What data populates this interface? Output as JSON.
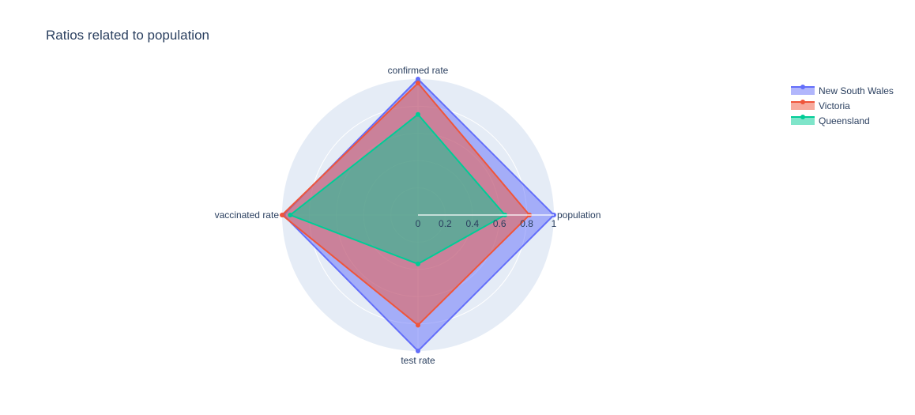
{
  "chart_data": {
    "type": "radar",
    "title": "Ratios related to population",
    "axes": [
      "population",
      "confirmed rate",
      "vaccinated rate",
      "test rate"
    ],
    "radial_range": [
      0,
      1
    ],
    "radial_ticks": [
      "0",
      "0.2",
      "0.4",
      "0.6",
      "0.8",
      "1"
    ],
    "legend_position": "top-right",
    "series": [
      {
        "name": "New South Wales",
        "color": "#636efa",
        "values": [
          1.0,
          1.0,
          0.99,
          1.0
        ]
      },
      {
        "name": "Victoria",
        "color": "#ef553b",
        "values": [
          0.82,
          0.97,
          1.0,
          0.81
        ]
      },
      {
        "name": "Queensland",
        "color": "#00cc96",
        "values": [
          0.64,
          0.74,
          0.94,
          0.36
        ]
      }
    ]
  }
}
